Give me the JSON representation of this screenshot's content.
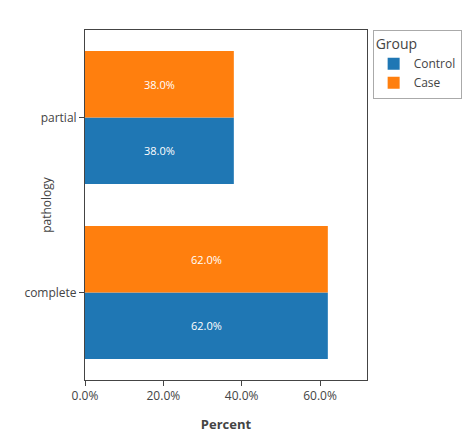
{
  "chart_data": {
    "type": "bar",
    "orientation": "horizontal",
    "xlabel": "Percent",
    "ylabel": "pathology",
    "categories": [
      "complete",
      "partial"
    ],
    "series": [
      {
        "name": "Control",
        "values": [
          62.0,
          38.0
        ],
        "value_labels": [
          "62.0%",
          "38.0%"
        ]
      },
      {
        "name": "Case",
        "values": [
          62.0,
          38.0
        ],
        "value_labels": [
          "62.0%",
          "38.0%"
        ]
      }
    ],
    "xlim": [
      0,
      72
    ],
    "xticks": [
      {
        "value": 0,
        "label": "0.0%"
      },
      {
        "value": 20,
        "label": "20.0%"
      },
      {
        "value": 40,
        "label": "40.0%"
      },
      {
        "value": 60,
        "label": "60.0%"
      }
    ],
    "data_labels": true,
    "grid": false,
    "legend": "right",
    "legend_title": "Group"
  }
}
